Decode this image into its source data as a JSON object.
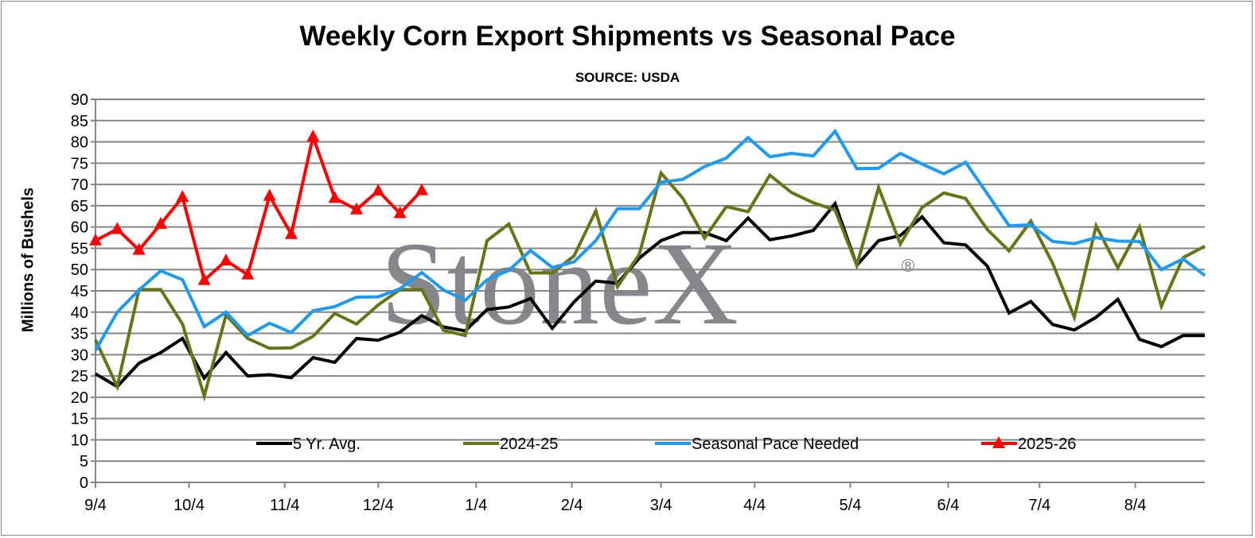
{
  "chart_data": {
    "type": "line",
    "title": "Weekly Corn Export Shipments vs Seasonal Pace",
    "subtitle": "SOURCE: USDA",
    "xlabel": "",
    "ylabel": "Millions of Bushels",
    "ylim": [
      0,
      90
    ],
    "ytick_step": 5,
    "yticks": [
      "0",
      "5",
      "10",
      "15",
      "20",
      "25",
      "30",
      "35",
      "40",
      "45",
      "50",
      "55",
      "60",
      "65",
      "70",
      "75",
      "80",
      "85",
      "90"
    ],
    "xtick_labels": [
      "9/4",
      "10/4",
      "11/4",
      "12/4",
      "1/4",
      "2/4",
      "3/4",
      "4/4",
      "5/4",
      "6/4",
      "7/4",
      "8/4"
    ],
    "xtick_week_index": [
      0,
      4.3,
      8.7,
      13,
      17.5,
      21.9,
      26,
      30.3,
      34.7,
      39.2,
      43.4,
      47.8
    ],
    "grid": "horizontal",
    "legend_position": "bottom-inside",
    "watermark": "StoneX®",
    "series": [
      {
        "name": "5 Yr. Avg.",
        "color": "#000000",
        "marker": "none",
        "values": [
          25.5,
          22.5,
          28,
          30.5,
          33.8,
          24.5,
          30.5,
          25,
          25.3,
          24.6,
          29.3,
          28.2,
          33.8,
          33.4,
          35.3,
          39.2,
          36.5,
          35.6,
          40.6,
          41.2,
          43.2,
          36.2,
          42.4,
          47.3,
          46.8,
          52.7,
          56.8,
          58.7,
          58.7,
          56.8,
          62.1,
          57,
          57.9,
          59.2,
          65.5,
          51,
          56.8,
          58,
          62.4,
          56.3,
          55.8,
          50.8,
          39.8,
          42.5,
          37.1,
          35.8,
          38.8,
          43,
          33.6,
          31.9,
          34.5,
          34.5
        ]
      },
      {
        "name": "2024-25",
        "color": "#667518",
        "marker": "none",
        "values": [
          33.5,
          22.5,
          45.3,
          45.3,
          37.2,
          20.3,
          39.3,
          33.8,
          31.5,
          31.6,
          34.3,
          39.7,
          37.2,
          41.7,
          45.3,
          45.3,
          35.7,
          34.5,
          56.8,
          60.7,
          49.2,
          49.2,
          53.2,
          63.8,
          46,
          53.6,
          72.7,
          66.8,
          57.4,
          64.8,
          63.6,
          72.2,
          68.1,
          65.7,
          64,
          51,
          69.3,
          56,
          64.6,
          68,
          66.7,
          59.4,
          54.4,
          61.4,
          51.5,
          38.8,
          60.3,
          50.4,
          60,
          41.4,
          52.8,
          55.5
        ]
      },
      {
        "name": "Seasonal Pace Needed",
        "color": "#1e9bf0",
        "marker": "none",
        "values": [
          31,
          40,
          45.2,
          49.7,
          47.6,
          36.6,
          40,
          34.5,
          37.4,
          35.2,
          40.3,
          41.3,
          43.5,
          43.6,
          45.5,
          49.3,
          45.2,
          42.8,
          47.6,
          49.8,
          54.5,
          50.5,
          51.8,
          56.8,
          64.3,
          64.3,
          70.5,
          71.2,
          74.2,
          76.2,
          81,
          76.5,
          77.3,
          76.7,
          82.5,
          73.7,
          73.8,
          77.3,
          74.8,
          72.5,
          75.2,
          67.8,
          60.3,
          60.5,
          56.6,
          56.1,
          57.5,
          56.7,
          56.6,
          50,
          52.5,
          48.6
        ]
      },
      {
        "name": "2025-26",
        "color": "#ff0000",
        "marker": "triangle",
        "values": [
          56.8,
          59.5,
          54.6,
          60.7,
          67,
          47.5,
          52.1,
          48.8,
          67.3,
          58.3,
          81.2,
          66.8,
          64.1,
          68.5,
          63.2,
          68.6
        ]
      }
    ]
  }
}
